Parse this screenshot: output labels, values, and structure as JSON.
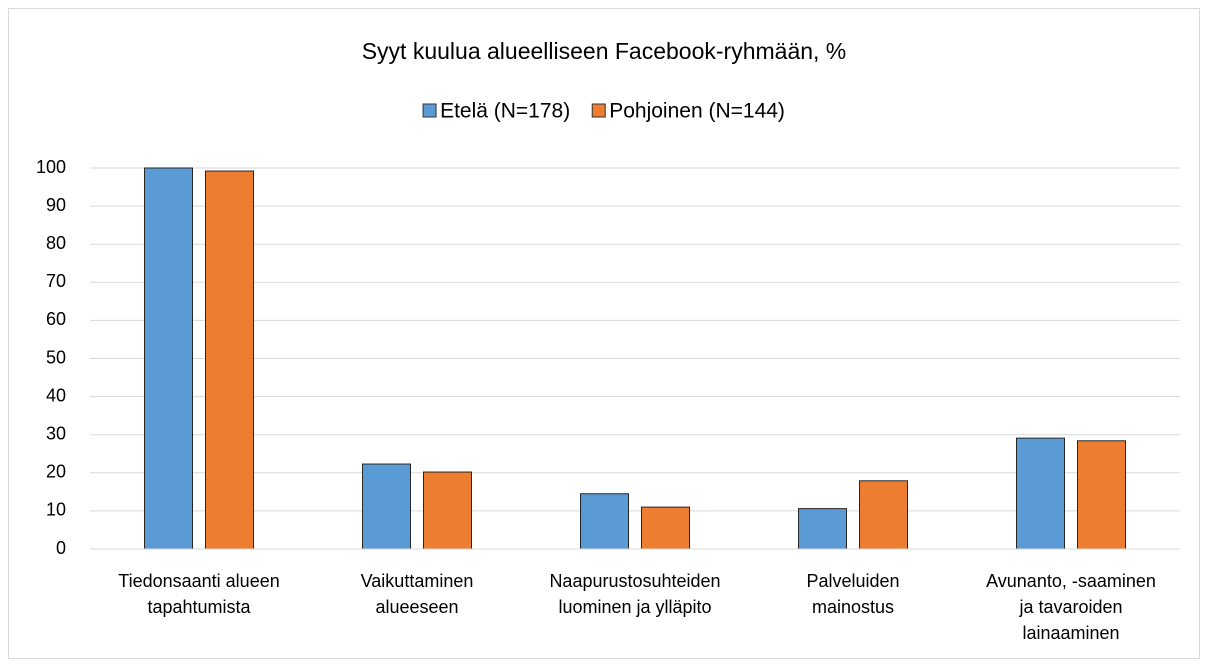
{
  "chart_data": {
    "type": "bar",
    "title": "Syyt kuulua alueelliseen Facebook-ryhmään, %",
    "categories": [
      "Tiedonsaanti alueen\ntapahtumista",
      "Vaikuttaminen\nalueeseen",
      "Naapurustosuhteiden\nluominen ja ylläpito",
      "Palveluiden\nmainostus",
      "Avunanto, -saaminen\nja tavaroiden\nlainaaminen"
    ],
    "series": [
      {
        "name": "Etelä (N=178)",
        "color": "#5b9bd5",
        "values": [
          100,
          22.3,
          14.5,
          10.6,
          29.1
        ]
      },
      {
        "name": "Pohjoinen (N=144)",
        "color": "#ed7d31",
        "values": [
          99.2,
          20.2,
          11.0,
          17.9,
          28.4
        ]
      }
    ],
    "ylim": [
      0,
      100
    ],
    "yticks": [
      0,
      10,
      20,
      30,
      40,
      50,
      60,
      70,
      80,
      90,
      100
    ],
    "grid": true,
    "legend": "top"
  }
}
